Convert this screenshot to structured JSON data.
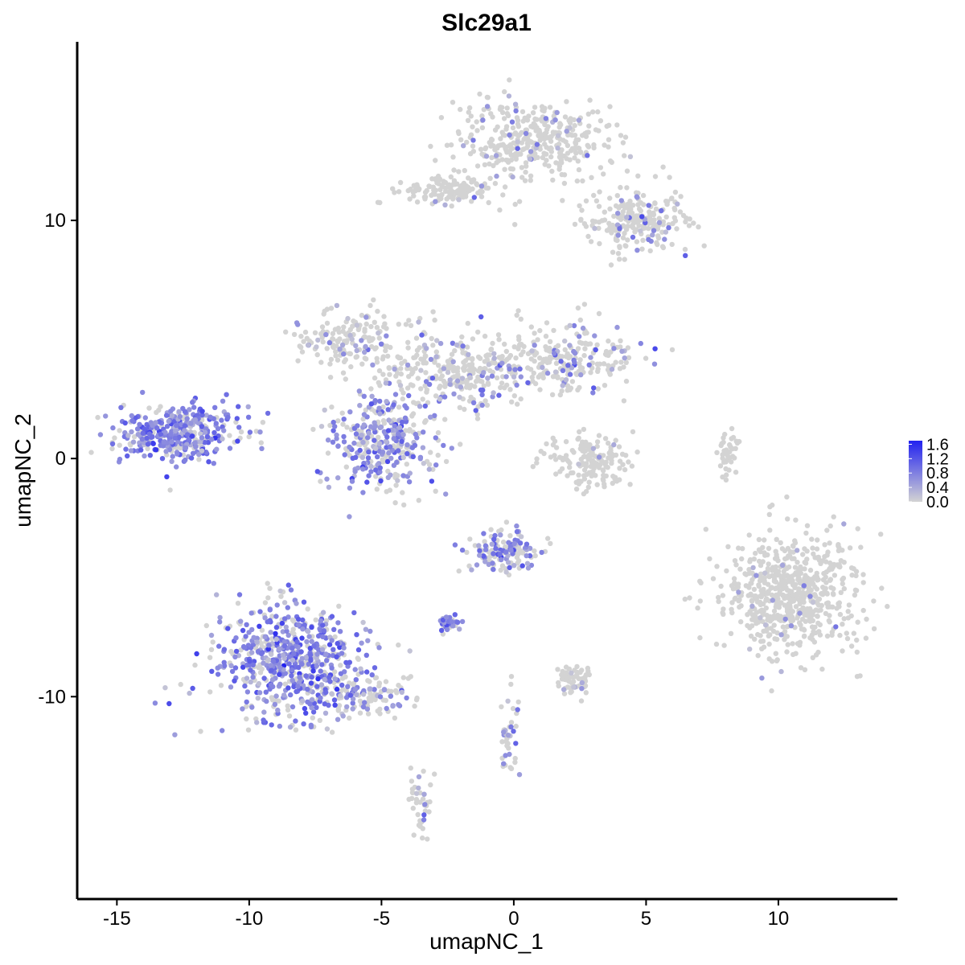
{
  "chart_data": {
    "type": "scatter",
    "title": "Slc29a1",
    "xlabel": "umapNC_1",
    "ylabel": "umapNC_2",
    "xlim": [
      -16.5,
      14.5
    ],
    "ylim": [
      -18.5,
      17.5
    ],
    "xticks": [
      -15,
      -10,
      -5,
      0,
      5,
      10
    ],
    "xtick_labels": [
      "-15",
      "-10",
      "-5",
      "0",
      "5",
      "10"
    ],
    "yticks": [
      -10,
      0,
      10
    ],
    "ytick_labels": [
      "-10",
      "0",
      "10"
    ],
    "grid": false,
    "colorbar": {
      "low_color": "#d3d3d3",
      "high_color": "#2222f0",
      "min": 0.0,
      "max": 1.7,
      "ticks": [
        1.6,
        1.2,
        0.8,
        0.4,
        0.0
      ],
      "tick_labels": [
        "1.6",
        "1.2",
        "0.8",
        "0.4",
        "0.0"
      ],
      "placement": "right"
    },
    "clusters": [
      {
        "id": "left-cluster",
        "center": [
          -12.6,
          1.1
        ],
        "spread": [
          1.1,
          0.6
        ],
        "count": 380,
        "expr_prob": 0.75,
        "expr_mean": 0.8
      },
      {
        "id": "upper-right-top",
        "center": [
          0.8,
          13.3
        ],
        "spread": [
          1.5,
          0.9
        ],
        "count": 380,
        "expr_prob": 0.06,
        "expr_mean": 0.5
      },
      {
        "id": "upper-right-arm",
        "center": [
          4.8,
          10.0
        ],
        "spread": [
          1.0,
          0.7
        ],
        "count": 220,
        "expr_prob": 0.14,
        "expr_mean": 0.6
      },
      {
        "id": "upper-left-bar",
        "center": [
          -2.4,
          11.3
        ],
        "spread": [
          0.9,
          0.3
        ],
        "count": 130,
        "expr_prob": 0.05,
        "expr_mean": 0.5
      },
      {
        "id": "middle-center",
        "center": [
          -2.3,
          3.6
        ],
        "spread": [
          1.4,
          0.9
        ],
        "count": 300,
        "expr_prob": 0.2,
        "expr_mean": 0.6
      },
      {
        "id": "middle-left-arm",
        "center": [
          -6.2,
          5.0
        ],
        "spread": [
          1.1,
          0.6
        ],
        "count": 160,
        "expr_prob": 0.15,
        "expr_mean": 0.5
      },
      {
        "id": "middle-right-arm",
        "center": [
          1.8,
          4.2
        ],
        "spread": [
          1.5,
          0.7
        ],
        "count": 240,
        "expr_prob": 0.2,
        "expr_mean": 0.6
      },
      {
        "id": "middle-lower-blob",
        "center": [
          -5.0,
          0.6
        ],
        "spread": [
          1.0,
          1.0
        ],
        "count": 330,
        "expr_prob": 0.6,
        "expr_mean": 0.7
      },
      {
        "id": "lower-left-cluster",
        "center": [
          -8.5,
          -8.5
        ],
        "spread": [
          1.4,
          1.2
        ],
        "count": 620,
        "expr_prob": 0.7,
        "expr_mean": 0.8
      },
      {
        "id": "lower-left-tail",
        "center": [
          -5.5,
          -9.9
        ],
        "spread": [
          1.0,
          0.4
        ],
        "count": 110,
        "expr_prob": 0.4,
        "expr_mean": 0.7
      },
      {
        "id": "right-cluster",
        "center": [
          10.5,
          -5.6
        ],
        "spread": [
          1.3,
          1.3
        ],
        "count": 640,
        "expr_prob": 0.03,
        "expr_mean": 0.4
      },
      {
        "id": "ring-cluster",
        "center": [
          3.0,
          -0.2
        ],
        "spread": [
          0.8,
          0.6
        ],
        "count": 160,
        "expr_prob": 0.06,
        "expr_mean": 0.4
      },
      {
        "id": "center-lower",
        "center": [
          -0.4,
          -3.9
        ],
        "spread": [
          0.6,
          0.45
        ],
        "count": 150,
        "expr_prob": 0.45,
        "expr_mean": 0.75
      },
      {
        "id": "small-left-lower",
        "center": [
          -2.5,
          -6.9
        ],
        "spread": [
          0.25,
          0.15
        ],
        "count": 40,
        "expr_prob": 0.7,
        "expr_mean": 0.7
      },
      {
        "id": "small-right-lower",
        "center": [
          2.2,
          -9.3
        ],
        "spread": [
          0.35,
          0.3
        ],
        "count": 60,
        "expr_prob": 0.05,
        "expr_mean": 0.4
      },
      {
        "id": "vertical-thread",
        "center": [
          -0.2,
          -11.6
        ],
        "spread": [
          0.2,
          0.9
        ],
        "count": 40,
        "expr_prob": 0.5,
        "expr_mean": 0.6
      },
      {
        "id": "right-streak",
        "center": [
          8.1,
          0.3
        ],
        "spread": [
          0.2,
          0.5
        ],
        "count": 40,
        "expr_prob": 0.0,
        "expr_mean": 0.0
      },
      {
        "id": "bottom-streak",
        "center": [
          -3.5,
          -14.5
        ],
        "spread": [
          0.2,
          0.8
        ],
        "count": 40,
        "expr_prob": 0.2,
        "expr_mean": 0.5
      }
    ]
  }
}
